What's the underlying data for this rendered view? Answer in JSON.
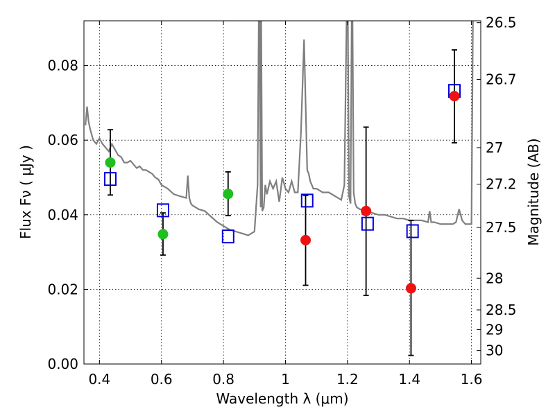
{
  "chart_data": {
    "type": "scatter",
    "title": "",
    "xlabel": "Wavelength  λ (μm)",
    "ylabel": "Flux  Fν  ( μJy )",
    "y2label": "Magnitude (AB)",
    "xlim": [
      0.35,
      1.63
    ],
    "ylim": [
      0.0,
      0.092
    ],
    "x_ticks": [
      0.4,
      0.6,
      0.8,
      1.0,
      1.2,
      1.4,
      1.6
    ],
    "x_tick_labels": [
      "0.4",
      "0.6",
      "0.8",
      "1",
      "1.2",
      "1.4",
      "1.6"
    ],
    "y_ticks": [
      0.0,
      0.02,
      0.04,
      0.06,
      0.08
    ],
    "y_tick_labels": [
      "0.00",
      "0.02",
      "0.04",
      "0.06",
      "0.08"
    ],
    "y2_ticks": [
      {
        "label": "26.5",
        "flux": 0.0915
      },
      {
        "label": "26.7",
        "flux": 0.0763
      },
      {
        "label": "27",
        "flux": 0.058
      },
      {
        "label": "27.2",
        "flux": 0.0482
      },
      {
        "label": "27.5",
        "flux": 0.0366
      },
      {
        "label": "28",
        "flux": 0.023
      },
      {
        "label": "28.5",
        "flux": 0.0145
      },
      {
        "label": "29",
        "flux": 0.0092
      },
      {
        "label": "30",
        "flux": 0.0036
      }
    ],
    "grid": true,
    "colors": {
      "spectrum": "#7f7f7f",
      "green": "#1fbf1f",
      "red": "#ee1111",
      "square": "#0000dd",
      "errorbar": "#000000"
    },
    "model_spectrum": {
      "x": [
        0.355,
        0.36,
        0.365,
        0.37,
        0.38,
        0.39,
        0.4,
        0.41,
        0.42,
        0.43,
        0.44,
        0.45,
        0.46,
        0.47,
        0.48,
        0.49,
        0.5,
        0.51,
        0.52,
        0.53,
        0.54,
        0.55,
        0.56,
        0.57,
        0.58,
        0.59,
        0.6,
        0.62,
        0.64,
        0.66,
        0.68,
        0.685,
        0.69,
        0.695,
        0.7,
        0.72,
        0.74,
        0.76,
        0.78,
        0.8,
        0.82,
        0.84,
        0.86,
        0.88,
        0.9,
        0.91,
        0.915,
        0.92,
        0.921,
        0.925,
        0.93,
        0.935,
        0.94,
        0.95,
        0.96,
        0.97,
        0.98,
        0.99,
        1.0,
        1.01,
        1.02,
        1.03,
        1.04,
        1.05,
        1.06,
        1.065,
        1.07,
        1.075,
        1.08,
        1.09,
        1.1,
        1.12,
        1.14,
        1.16,
        1.18,
        1.19,
        1.2,
        1.205,
        1.21,
        1.215,
        1.22,
        1.225,
        1.23,
        1.24,
        1.26,
        1.28,
        1.3,
        1.32,
        1.34,
        1.36,
        1.38,
        1.4,
        1.42,
        1.44,
        1.46,
        1.465,
        1.47,
        1.48,
        1.5,
        1.52,
        1.54,
        1.55,
        1.56,
        1.57,
        1.58,
        1.59,
        1.6,
        1.605,
        1.61,
        1.62
      ],
      "y": [
        0.064,
        0.069,
        0.065,
        0.063,
        0.06,
        0.059,
        0.0605,
        0.059,
        0.058,
        0.057,
        0.059,
        0.0575,
        0.056,
        0.0555,
        0.054,
        0.054,
        0.0545,
        0.0535,
        0.0525,
        0.053,
        0.052,
        0.052,
        0.0515,
        0.051,
        0.05,
        0.0495,
        0.048,
        0.047,
        0.0455,
        0.045,
        0.0445,
        0.0505,
        0.0445,
        0.043,
        0.0425,
        0.0415,
        0.041,
        0.0395,
        0.038,
        0.037,
        0.036,
        0.0355,
        0.035,
        0.0345,
        0.0355,
        0.048,
        0.105,
        0.042,
        0.105,
        0.041,
        0.042,
        0.048,
        0.0455,
        0.049,
        0.047,
        0.049,
        0.0435,
        0.05,
        0.047,
        0.046,
        0.049,
        0.046,
        0.046,
        0.062,
        0.087,
        0.07,
        0.052,
        0.051,
        0.049,
        0.047,
        0.047,
        0.046,
        0.046,
        0.045,
        0.044,
        0.048,
        0.11,
        0.045,
        0.043,
        0.11,
        0.046,
        0.043,
        0.042,
        0.0415,
        0.041,
        0.0405,
        0.04,
        0.04,
        0.0395,
        0.039,
        0.039,
        0.0385,
        0.0385,
        0.0385,
        0.038,
        0.041,
        0.038,
        0.038,
        0.0375,
        0.0375,
        0.0375,
        0.038,
        0.0415,
        0.0385,
        0.0375,
        0.0375,
        0.0375,
        0.095,
        0.11,
        0.11
      ]
    },
    "green_points": [
      {
        "x": 0.435,
        "y": 0.054
      },
      {
        "x": 0.605,
        "y": 0.0348
      },
      {
        "x": 0.815,
        "y": 0.0456
      }
    ],
    "red_points": [
      {
        "x": 1.065,
        "y": 0.0332
      },
      {
        "x": 1.26,
        "y": 0.041
      },
      {
        "x": 1.405,
        "y": 0.0203
      },
      {
        "x": 1.545,
        "y": 0.0718
      }
    ],
    "model_photometry_squares": [
      {
        "x": 0.435,
        "y": 0.0496
      },
      {
        "x": 0.605,
        "y": 0.0412
      },
      {
        "x": 0.815,
        "y": 0.0342
      },
      {
        "x": 1.07,
        "y": 0.0438
      },
      {
        "x": 1.265,
        "y": 0.0376
      },
      {
        "x": 1.41,
        "y": 0.0356
      },
      {
        "x": 1.545,
        "y": 0.0732
      }
    ],
    "error_bars": [
      {
        "x": 0.435,
        "low": 0.0453,
        "high": 0.0628
      },
      {
        "x": 0.605,
        "low": 0.0292,
        "high": 0.0405
      },
      {
        "x": 0.815,
        "low": 0.0398,
        "high": 0.0515
      },
      {
        "x": 1.065,
        "low": 0.0211,
        "high": 0.0452
      },
      {
        "x": 1.26,
        "low": 0.0184,
        "high": 0.0635
      },
      {
        "x": 1.405,
        "low": 0.0023,
        "high": 0.0385
      },
      {
        "x": 1.545,
        "low": 0.0593,
        "high": 0.0842
      }
    ]
  }
}
